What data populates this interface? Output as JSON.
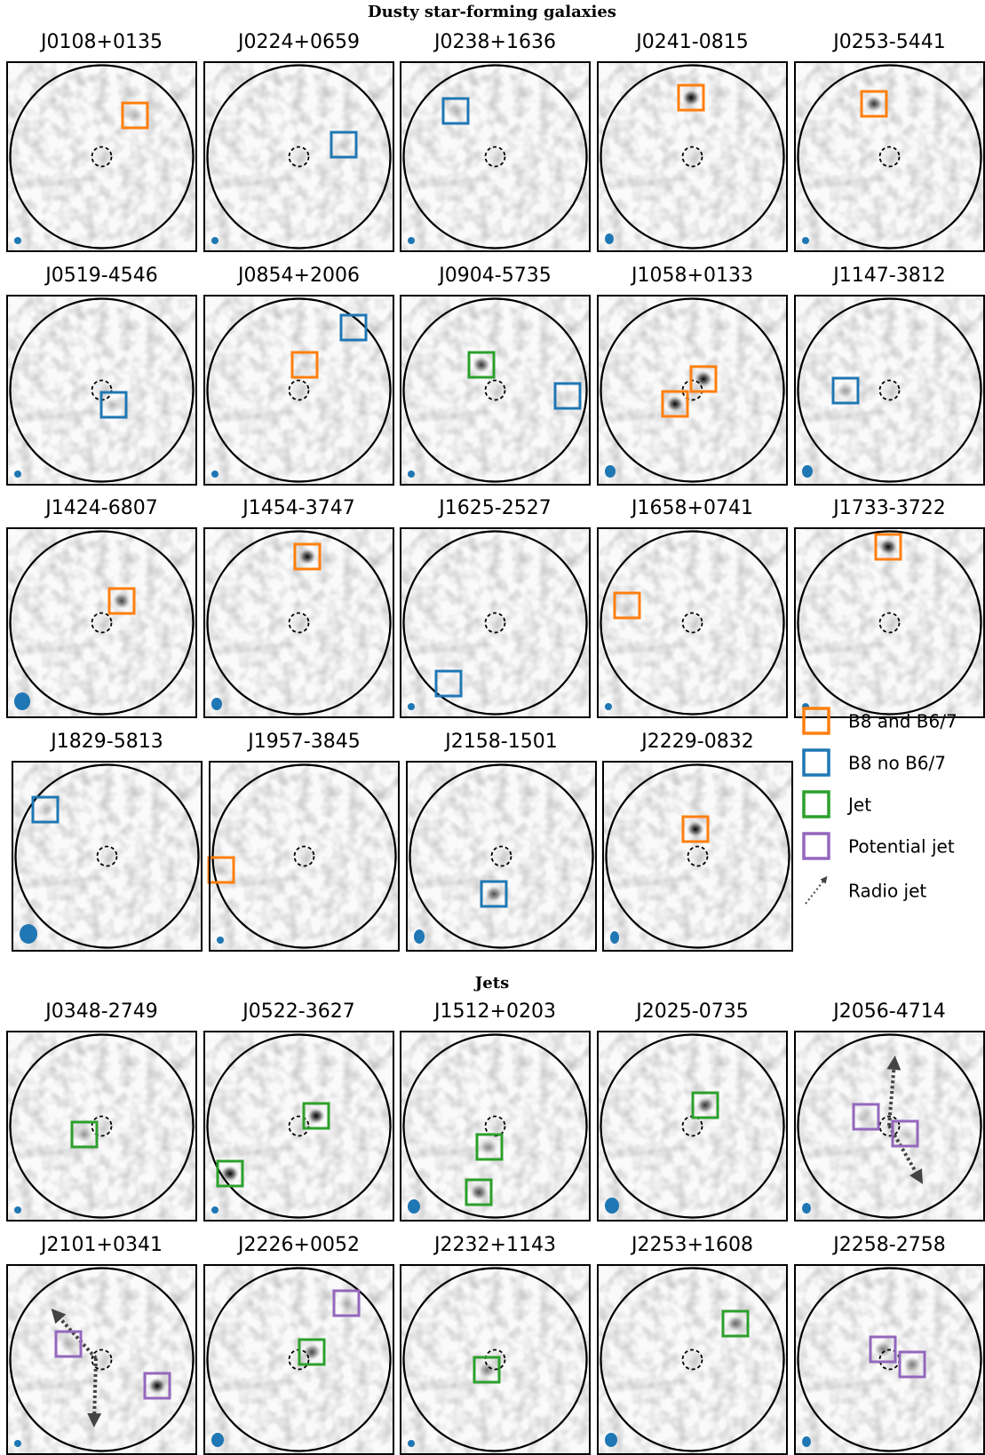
{
  "sections": [
    {
      "title": "Dusty star-forming galaxies",
      "panels": [
        "J0108+0135",
        "J0224+0659",
        "J0238+1636",
        "J0241-0815",
        "J0253-5441",
        "J0519-4546",
        "J0854+2006",
        "J0904-5735",
        "J1058+0133",
        "J1147-3812",
        "J1424-6807",
        "J1454-3747",
        "J1625-2527",
        "J1658+0741",
        "J1733-3722",
        "J1829-5813",
        "J1957-3845",
        "J2158-1501",
        "J2229-0832"
      ]
    },
    {
      "title": "Jets",
      "panels": [
        "J0348-2749",
        "J0522-3627",
        "J1512+0203",
        "J2025-0735",
        "J2056-4714",
        "J2101+0341",
        "J2226+0052",
        "J2232+1143",
        "J2253+1608",
        "J2258-2758"
      ]
    }
  ],
  "legend": [
    {
      "label": "B8 and B6/7",
      "color": "#ff7f0e"
    },
    {
      "label": "B8 no B6/7",
      "color": "#1f77b4"
    },
    {
      "label": "Jet",
      "color": "#2ca02c"
    },
    {
      "label": "Potential jet",
      "color": "#9467bd"
    },
    {
      "label": "Radio jet",
      "color": "#444444"
    }
  ]
}
